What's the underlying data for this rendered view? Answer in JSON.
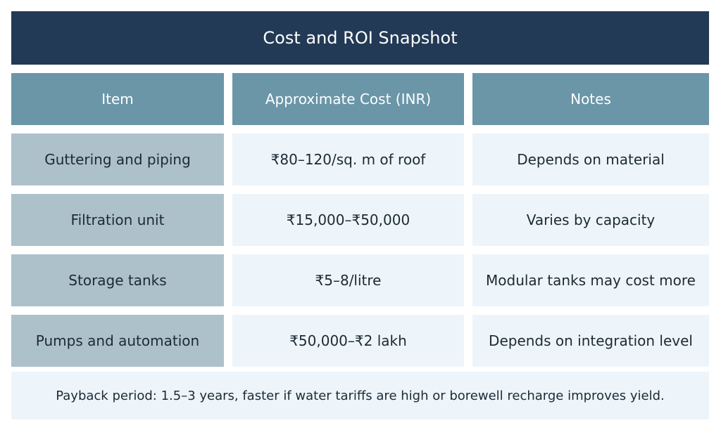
{
  "title": "Cost and ROI Snapshot",
  "headers": [
    "Item",
    "Approximate Cost (INR)",
    "Notes"
  ],
  "rows": [
    {
      "item": "Guttering and piping",
      "cost": "₹80–120/sq. m of roof",
      "notes": "Depends on material"
    },
    {
      "item": "Filtration unit",
      "cost": "₹15,000–₹50,000",
      "notes": "Varies by capacity"
    },
    {
      "item": "Storage tanks",
      "cost": "₹5–8/litre",
      "notes": "Modular tanks may cost more"
    },
    {
      "item": "Pumps and automation",
      "cost": "₹50,000–₹2 lakh",
      "notes": "Depends on integration level"
    }
  ],
  "footer": "Payback period: 1.5–3 years, faster if water tariffs are high or borewell recharge improves yield.",
  "colors": {
    "title_bg": "#233a56",
    "header_bg": "#6a96a8",
    "item_bg": "#adc1cb",
    "cell_bg": "#edf5fb"
  }
}
